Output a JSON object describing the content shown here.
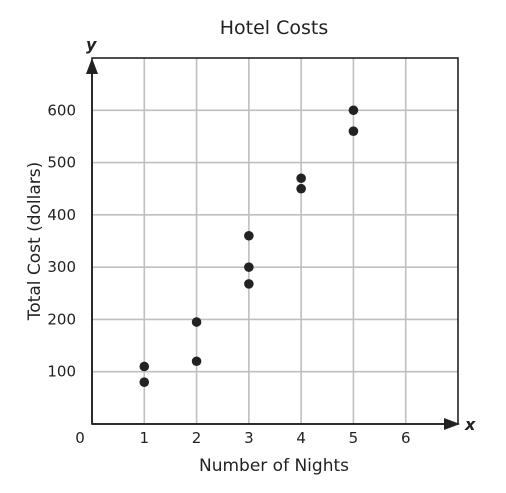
{
  "chart_data": {
    "type": "scatter",
    "title": "Hotel Costs",
    "xlabel": "Number of Nights",
    "ylabel": "Total Cost (dollars)",
    "x_axis_letter": "x",
    "y_axis_letter": "y",
    "origin_label": "0",
    "xlim": [
      0,
      7
    ],
    "ylim": [
      0,
      600
    ],
    "x_ticks": [
      1,
      2,
      3,
      4,
      5,
      6
    ],
    "y_ticks": [
      100,
      200,
      300,
      400,
      500,
      600
    ],
    "grid": true,
    "points": [
      {
        "x": 1,
        "y": 110
      },
      {
        "x": 1,
        "y": 80
      },
      {
        "x": 2,
        "y": 195
      },
      {
        "x": 2,
        "y": 120
      },
      {
        "x": 3,
        "y": 360
      },
      {
        "x": 3,
        "y": 300
      },
      {
        "x": 3,
        "y": 268
      },
      {
        "x": 4,
        "y": 470
      },
      {
        "x": 4,
        "y": 450
      },
      {
        "x": 5,
        "y": 600
      },
      {
        "x": 5,
        "y": 560
      }
    ],
    "colors": {
      "points": "#222222",
      "grid": "#bfbfbf",
      "axes": "#222222"
    }
  }
}
